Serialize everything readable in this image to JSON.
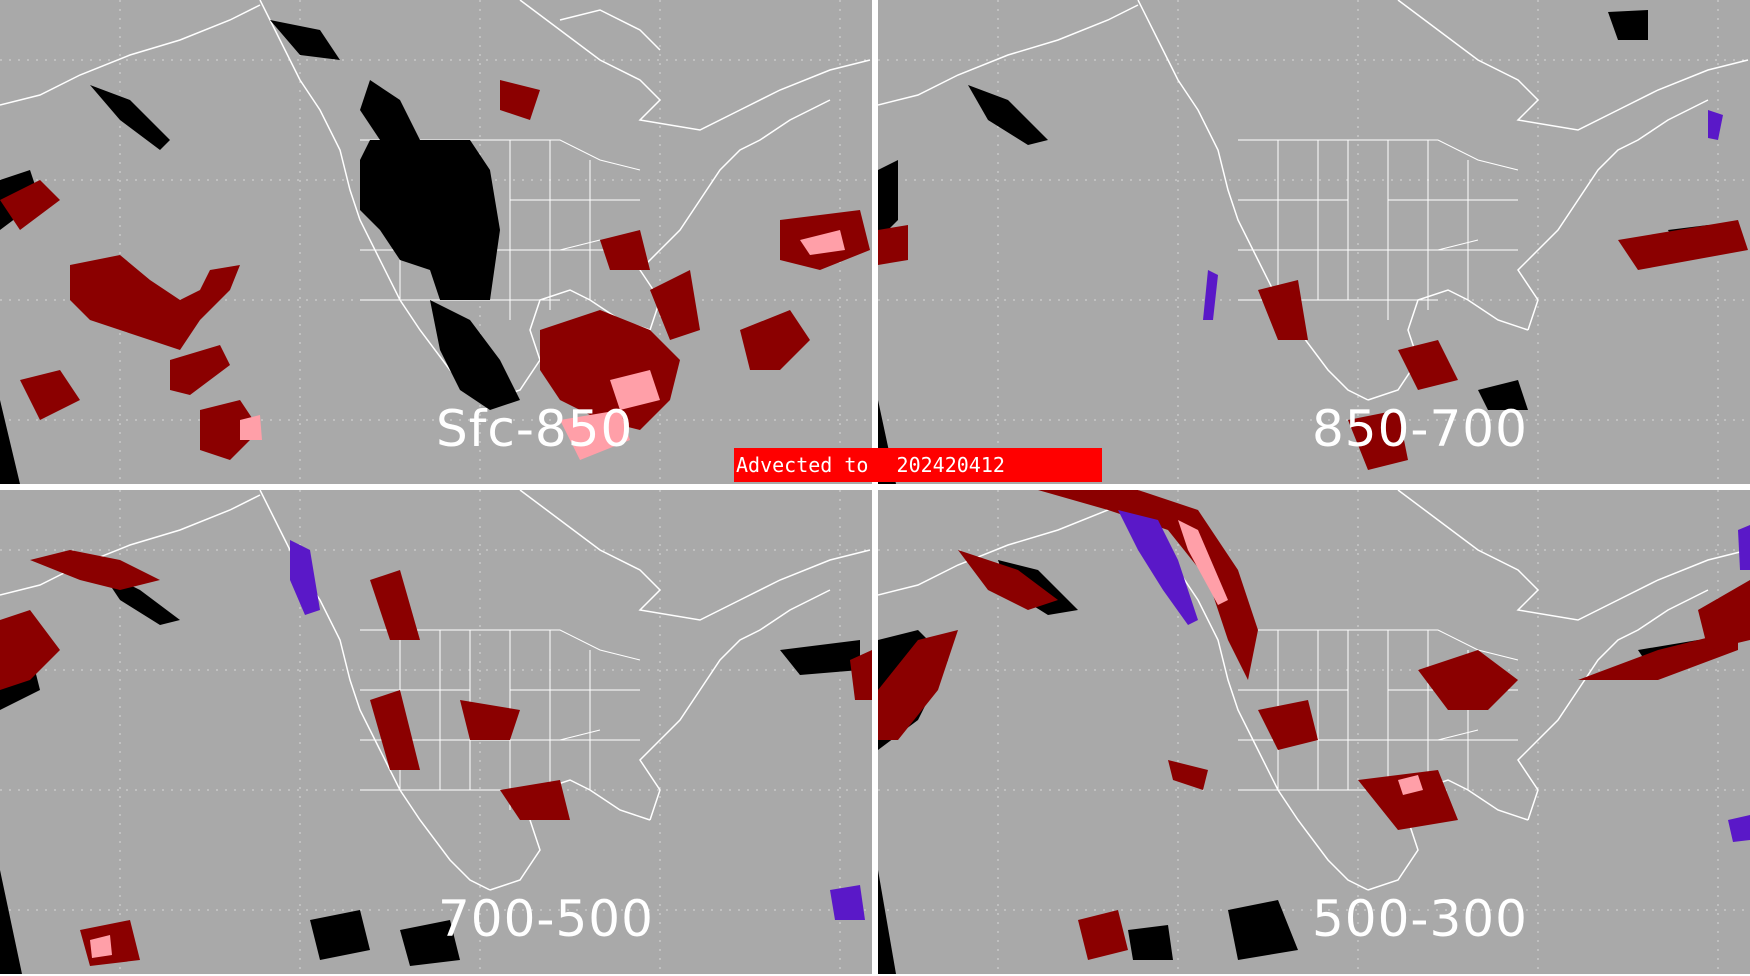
{
  "banner": {
    "prefix": "Advected to",
    "date": "202420412"
  },
  "colors": {
    "background": "#a9a9a9",
    "dark_red": "#8b0000",
    "pink": "#ff9fa8",
    "black": "#000000",
    "purple": "#5a18c8",
    "map_lines": "#ffffff"
  },
  "panels": [
    {
      "id": "top-left",
      "label": "Sfc-850"
    },
    {
      "id": "top-right",
      "label": "850-700"
    },
    {
      "id": "bottom-left",
      "label": "700-500"
    },
    {
      "id": "bottom-right",
      "label": "500-300"
    }
  ]
}
